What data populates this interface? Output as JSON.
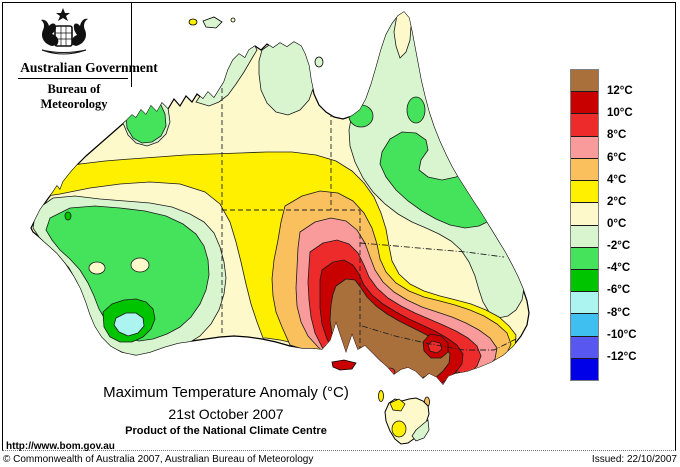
{
  "header": {
    "government": "Australian Government",
    "bureau": "Bureau of Meteorology"
  },
  "legend": {
    "labels": [
      "12°C",
      "10°C",
      "8°C",
      "6°C",
      "4°C",
      "2°C",
      "0°C",
      "-2°C",
      "-4°C",
      "-6°C",
      "-8°C",
      "-10°C",
      "-12°C"
    ],
    "colors": [
      "#A9703C",
      "#C80000",
      "#EE2B2B",
      "#F99B9B",
      "#FAC05E",
      "#FFF000",
      "#FEF9CB",
      "#D8F5D0",
      "#45E35B",
      "#00C400",
      "#ABF4F0",
      "#3FBEF0",
      "#5858F0",
      "#0000E8"
    ]
  },
  "title": {
    "line1": "Maximum Temperature Anomaly (°C)",
    "line2": "21st October 2007",
    "line3": "Product of the National Climate Centre"
  },
  "footer": {
    "url": "http://www.bom.gov.au",
    "copyright": "© Commonwealth of Australia 2007, Australian Bureau of Meteorology",
    "issued": "Issued: 22/10/2007"
  }
}
